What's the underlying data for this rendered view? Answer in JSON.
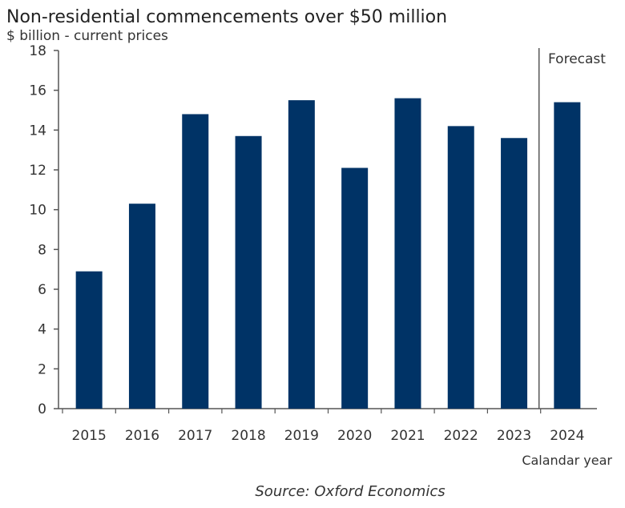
{
  "chart_data": {
    "type": "bar",
    "title": "Non-residential commencements over $50 million",
    "subtitle": "$ billion - current prices",
    "xlabel": "Calandar year",
    "ylabel": "",
    "ylim": [
      0,
      18
    ],
    "yticks": [
      0,
      2,
      4,
      6,
      8,
      10,
      12,
      14,
      16,
      18
    ],
    "categories": [
      "2015",
      "2016",
      "2017",
      "2018",
      "2019",
      "2020",
      "2021",
      "2022",
      "2023",
      "2024"
    ],
    "values": [
      6.9,
      10.3,
      14.8,
      13.7,
      15.5,
      12.1,
      15.6,
      14.2,
      13.6,
      15.4
    ],
    "bar_color": "#003366",
    "annotation": "Forecast",
    "forecast_from": "2024",
    "grid": false,
    "source": "Source: Oxford Economics"
  }
}
